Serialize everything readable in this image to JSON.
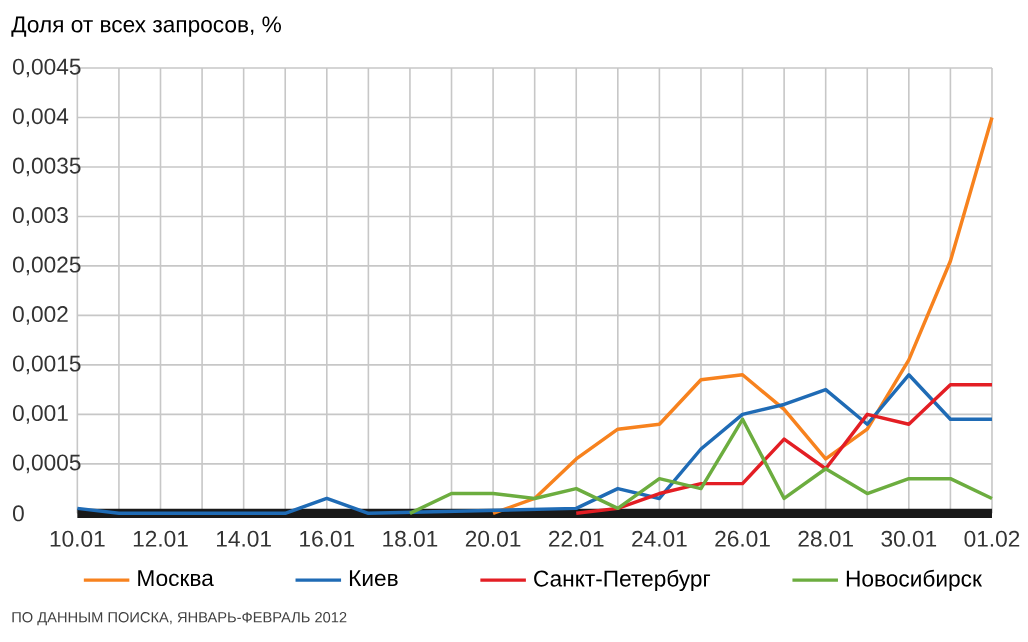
{
  "chart_data": {
    "type": "line",
    "ylabel": "Доля от всех запросов, %",
    "categories": [
      "10.01",
      null,
      "12.01",
      null,
      "14.01",
      null,
      "16.01",
      null,
      "18.01",
      null,
      "20.01",
      null,
      "22.01",
      null,
      "24.01",
      null,
      "26.01",
      null,
      "28.01",
      null,
      "30.01",
      null,
      "01.02"
    ],
    "series": [
      {
        "name": "Москва",
        "color": "#f7821e",
        "values": [
          null,
          null,
          null,
          null,
          null,
          null,
          null,
          null,
          null,
          null,
          0,
          0.00015,
          0.00055,
          0.00085,
          0.0009,
          0.00135,
          0.0014,
          0.00105,
          0.00055,
          0.00085,
          0.00155,
          0.00255,
          0.004
        ]
      },
      {
        "name": "Киев",
        "color": "#1f6bb5",
        "values": [
          5e-05,
          0,
          null,
          null,
          null,
          0,
          0.00015,
          0,
          null,
          null,
          null,
          null,
          5e-05,
          0.00025,
          0.00015,
          0.00065,
          0.001,
          0.0011,
          0.00125,
          0.0009,
          0.0014,
          0.00095,
          0.00095
        ]
      },
      {
        "name": "Санкт-Петербург",
        "color": "#e31e24",
        "values": [
          null,
          null,
          null,
          null,
          null,
          null,
          null,
          null,
          null,
          null,
          null,
          null,
          0,
          5e-05,
          0.0002,
          0.0003,
          0.0003,
          0.00075,
          0.00045,
          0.001,
          0.0009,
          0.0013,
          0.0013
        ]
      },
      {
        "name": "Новосибирск",
        "color": "#6cad3f",
        "values": [
          null,
          null,
          null,
          null,
          null,
          null,
          null,
          null,
          0,
          0.0002,
          0.0002,
          0.00015,
          0.00025,
          5e-05,
          0.00035,
          0.00025,
          0.00095,
          0.00015,
          0.00045,
          0.0002,
          0.00035,
          0.00035,
          0.00015
        ]
      }
    ],
    "ylim": [
      0,
      0.0045
    ],
    "yticks": [
      {
        "value": 0,
        "label": "0"
      },
      {
        "value": 0.0005,
        "label": "0,0005"
      },
      {
        "value": 0.001,
        "label": "0,001"
      },
      {
        "value": 0.0015,
        "label": "0,0015"
      },
      {
        "value": 0.002,
        "label": "0,002"
      },
      {
        "value": 0.0025,
        "label": "0,0025"
      },
      {
        "value": 0.003,
        "label": "0,003"
      },
      {
        "value": 0.0035,
        "label": "0,0035"
      },
      {
        "value": 0.004,
        "label": "0,004"
      },
      {
        "value": 0.0045,
        "label": "0,0045"
      }
    ],
    "grid": true,
    "legend": "bottom",
    "marker": "none",
    "line_style": "solid",
    "annotations": [
      "ПО ДАННЫМ ПОИСКА, ЯНВАРЬ-ФЕВРАЛЬ 2012"
    ]
  }
}
